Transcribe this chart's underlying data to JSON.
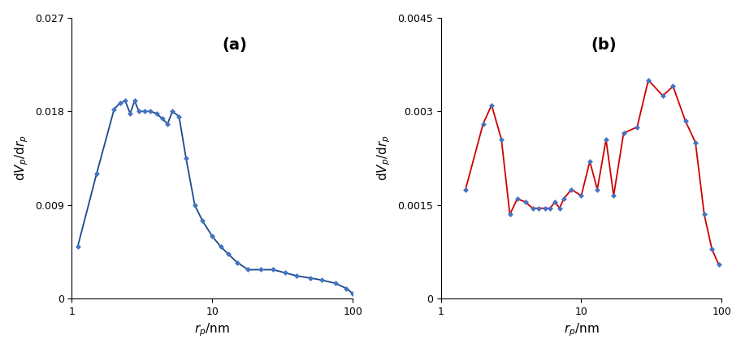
{
  "panel_a": {
    "label": "(a)",
    "line_color": "#1a4a8a",
    "marker_color": "#4472c4",
    "x": [
      1.1,
      1.5,
      2.0,
      2.2,
      2.4,
      2.6,
      2.8,
      3.0,
      3.3,
      3.6,
      4.0,
      4.4,
      4.8,
      5.2,
      5.8,
      6.5,
      7.5,
      8.5,
      10.0,
      11.5,
      13.0,
      15.0,
      18.0,
      22.0,
      27.0,
      33.0,
      40.0,
      50.0,
      60.0,
      75.0,
      90.0,
      100.0
    ],
    "y": [
      0.005,
      0.012,
      0.0182,
      0.0188,
      0.019,
      0.0178,
      0.019,
      0.018,
      0.018,
      0.018,
      0.0178,
      0.0173,
      0.0168,
      0.018,
      0.0175,
      0.0135,
      0.009,
      0.0075,
      0.006,
      0.005,
      0.0043,
      0.0035,
      0.0028,
      0.0028,
      0.0028,
      0.0025,
      0.0022,
      0.002,
      0.0018,
      0.0015,
      0.001,
      0.0005
    ],
    "xlabel": "$r_p$/nm",
    "ylabel": "d$V_p$/d$r_p$",
    "xlim": [
      1,
      100
    ],
    "ylim": [
      0,
      0.027
    ],
    "yticks": [
      0,
      0.009,
      0.018,
      0.027
    ],
    "ytick_labels": [
      "0",
      "0.009",
      "0.018",
      "0.027"
    ]
  },
  "panel_b": {
    "label": "(b)",
    "line_color": "#cc0000",
    "marker_color": "#4472c4",
    "x": [
      1.5,
      2.0,
      2.3,
      2.7,
      3.1,
      3.5,
      4.0,
      4.5,
      5.0,
      5.5,
      6.0,
      6.5,
      7.0,
      7.5,
      8.5,
      10.0,
      11.5,
      13.0,
      15.0,
      17.0,
      20.0,
      25.0,
      30.0,
      38.0,
      45.0,
      55.0,
      65.0,
      75.0,
      85.0,
      95.0
    ],
    "y": [
      0.00175,
      0.0028,
      0.0031,
      0.00255,
      0.00135,
      0.0016,
      0.00155,
      0.00145,
      0.00145,
      0.00145,
      0.00145,
      0.00155,
      0.00145,
      0.0016,
      0.00175,
      0.00165,
      0.0022,
      0.00175,
      0.00255,
      0.00165,
      0.00265,
      0.00275,
      0.0035,
      0.00325,
      0.0034,
      0.00285,
      0.0025,
      0.00135,
      0.0008,
      0.00055
    ],
    "xlabel": "$r_p$/nm",
    "ylabel": "d$V_p$/d$r_p$",
    "xlim": [
      1,
      100
    ],
    "ylim": [
      0,
      0.0045
    ],
    "yticks": [
      0,
      0.0015,
      0.003,
      0.0045
    ],
    "ytick_labels": [
      "0",
      "0.0015",
      "0.003",
      "0.0045"
    ]
  }
}
